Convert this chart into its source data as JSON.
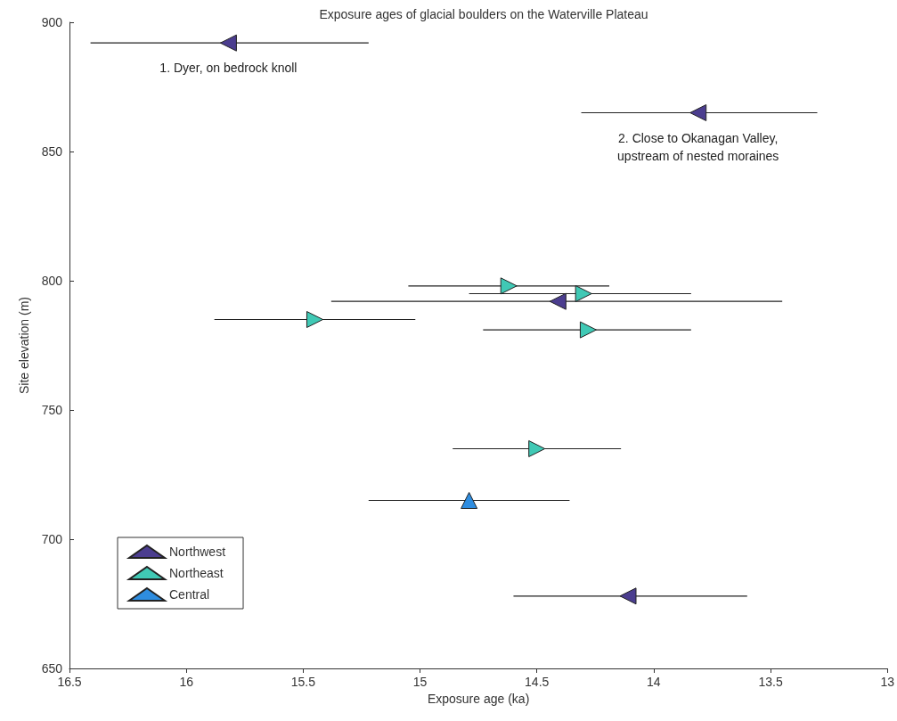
{
  "chart_data": {
    "type": "scatter",
    "title": "Exposure ages of glacial boulders on the Waterville Plateau",
    "xlabel": "Exposure age (ka)",
    "ylabel": "Site elevation (m)",
    "xlim": [
      16.5,
      13
    ],
    "xticks": [
      16.5,
      16,
      15.5,
      15,
      14.5,
      14,
      13.5,
      13
    ],
    "ylim": [
      650,
      900
    ],
    "yticks": [
      650,
      700,
      750,
      800,
      850,
      900
    ],
    "grid": false,
    "legend": "bottom left",
    "marker": "triangle",
    "series": [
      {
        "name": "Northwest",
        "color": "#4b3d8f",
        "x": [
          15.82,
          13.81,
          14.41,
          14.11
        ],
        "values": [
          892,
          865,
          792,
          678
        ],
        "xerrors": [
          [
            15.22,
            16.41
          ],
          [
            13.3,
            14.31
          ],
          [
            13.45,
            15.38
          ],
          [
            13.6,
            14.6
          ]
        ]
      },
      {
        "name": "Northeast",
        "color": "#40c9b5",
        "x": [
          14.62,
          14.3,
          15.45,
          14.28,
          14.5
        ],
        "values": [
          798,
          795,
          785,
          781,
          735
        ],
        "xerrors": [
          [
            14.19,
            15.05
          ],
          [
            13.84,
            14.79
          ],
          [
            15.02,
            15.88
          ],
          [
            13.84,
            14.73
          ],
          [
            14.14,
            14.86
          ]
        ]
      },
      {
        "name": "Central",
        "color": "#2e8de0",
        "x": [
          14.79
        ],
        "values": [
          715
        ],
        "xerrors": [
          [
            14.36,
            15.22
          ]
        ]
      }
    ],
    "annotations": [
      {
        "text": "1. Dyer, on bedrock knoll",
        "x": 15.82,
        "y": 892
      },
      {
        "text": "2. Close to Okanagan Valley,\nupstream of nested moraines",
        "x": 13.81,
        "y": 865
      }
    ]
  }
}
